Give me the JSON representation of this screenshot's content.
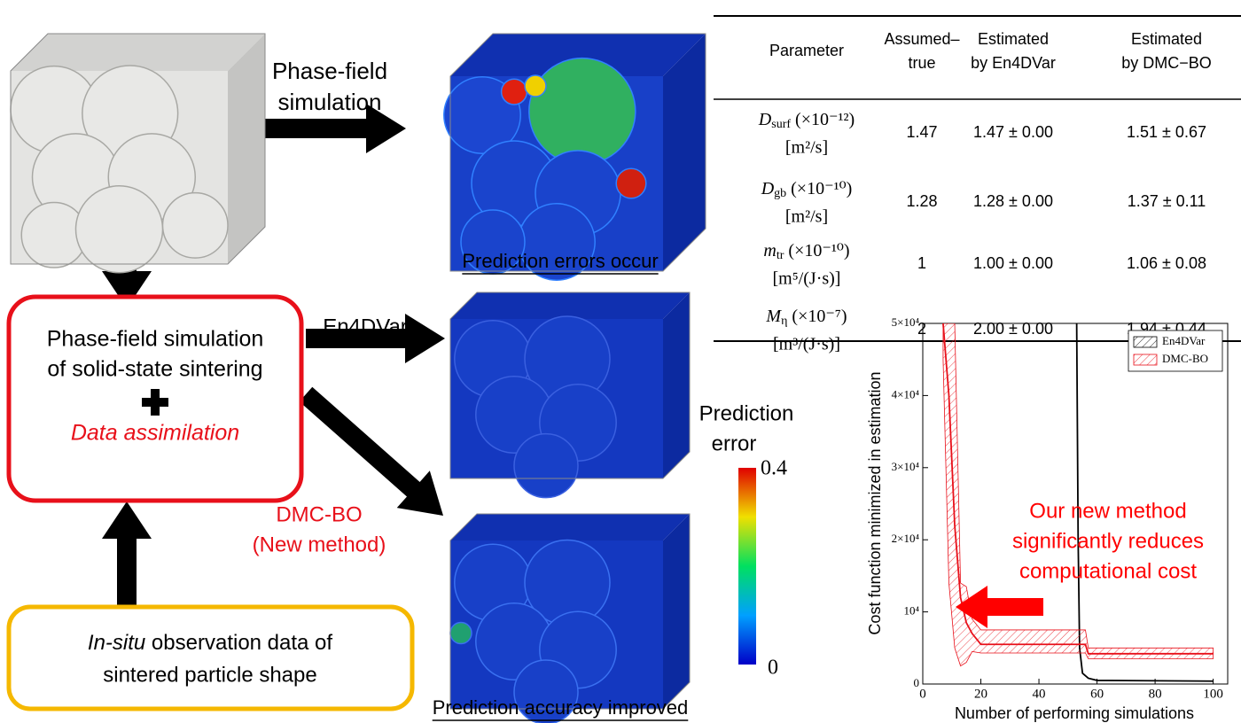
{
  "arrows": {
    "phase_field": [
      "Phase-field",
      "simulation"
    ],
    "en4dvar": "En4DVar",
    "dmc_bo": [
      "DMC-BO",
      "(New method)"
    ]
  },
  "center_box": {
    "lines": [
      "Phase-field simulation",
      "of solid-state sintering"
    ],
    "highlight": "Data assimilation"
  },
  "observation_box": {
    "lines": [
      {
        "italic": "In-situ",
        "text": " observation data of"
      },
      "sintered particle shape"
    ]
  },
  "captions": {
    "top": "Prediction errors occur",
    "bottom": "Prediction accuracy improved"
  },
  "colorbar": {
    "title": [
      "Prediction",
      "error"
    ],
    "max": 0.4,
    "min": 0
  },
  "table": {
    "headers": [
      [
        "Parameter"
      ],
      [
        "Assumed–",
        "true"
      ],
      [
        "Estimated",
        "by En4DVar"
      ],
      [
        "Estimated",
        "by DMC−BO"
      ]
    ],
    "rows": [
      [
        {
          "symbol": "D",
          "sub": "surf",
          "scale": " (×10⁻¹²)",
          "unit": "[m²/s]"
        },
        1.47,
        "1.47 ± 0.00",
        "1.51 ± 0.67"
      ],
      [
        {
          "symbol": "D",
          "sub": "gb",
          "scale": " (×10⁻¹⁰)",
          "unit": "[m²/s]"
        },
        1.28,
        "1.28 ± 0.00",
        "1.37 ± 0.11"
      ],
      [
        {
          "symbol": "m",
          "sub": "tr",
          "scale": " (×10⁻¹⁰)",
          "unit": "[m⁵/(J·s)]"
        },
        1,
        "1.00 ± 0.00",
        "1.06 ± 0.08"
      ],
      [
        {
          "symbol": "M",
          "sub": "η",
          "scale": " (×10⁻⁷)",
          "unit": "[m³/(J·s)]"
        },
        2,
        "2.00 ± 0.00",
        "1.94 ± 0.44"
      ]
    ]
  },
  "chart_data": {
    "type": "line",
    "xlabel": "Number of performing simulations",
    "ylabel": "Cost function minimized in estimation",
    "annotation": [
      "Our new method",
      "significantly reduces",
      "computational cost"
    ],
    "xlim": [
      0,
      105
    ],
    "ylim": [
      0,
      50000
    ],
    "xticks": [
      0,
      20,
      40,
      60,
      80,
      100
    ],
    "yticks": [
      0,
      {
        "value": 10000,
        "label": "10⁴"
      },
      {
        "value": 20000,
        "label": "2×10⁴"
      },
      {
        "value": 30000,
        "label": "3×10⁴"
      },
      {
        "value": 40000,
        "label": "4×10⁴"
      },
      {
        "value": 50000,
        "label": "5×10⁴"
      }
    ],
    "legend": "upper right",
    "series": [
      {
        "name": "En4DVar",
        "color": "#000000",
        "x": [
          53,
          53.5,
          54,
          55,
          57,
          60,
          100
        ],
        "values": [
          50000,
          20000,
          5000,
          1500,
          800,
          500,
          400
        ]
      },
      {
        "name": "DMC-BO",
        "color": "#e8101a",
        "x": [
          7,
          9,
          11,
          13,
          15,
          17,
          20,
          30,
          40,
          50,
          56,
          57,
          60,
          70,
          80,
          90,
          100
        ],
        "values": [
          50000,
          40000,
          22000,
          12000,
          8500,
          7000,
          5500,
          5500,
          5500,
          5500,
          5500,
          4200,
          4200,
          4200,
          4200,
          4200,
          4200
        ],
        "lower": [
          45000,
          14000,
          5000,
          2500,
          3000,
          4500,
          4300,
          4300,
          4300,
          4300,
          4300,
          3500,
          3500,
          3500,
          3500,
          3500,
          3500
        ],
        "upper": [
          50000,
          50000,
          50000,
          14000,
          13500,
          9000,
          7500,
          7500,
          7500,
          7500,
          7500,
          5000,
          5000,
          5000,
          5000,
          5000,
          5000
        ]
      }
    ]
  }
}
